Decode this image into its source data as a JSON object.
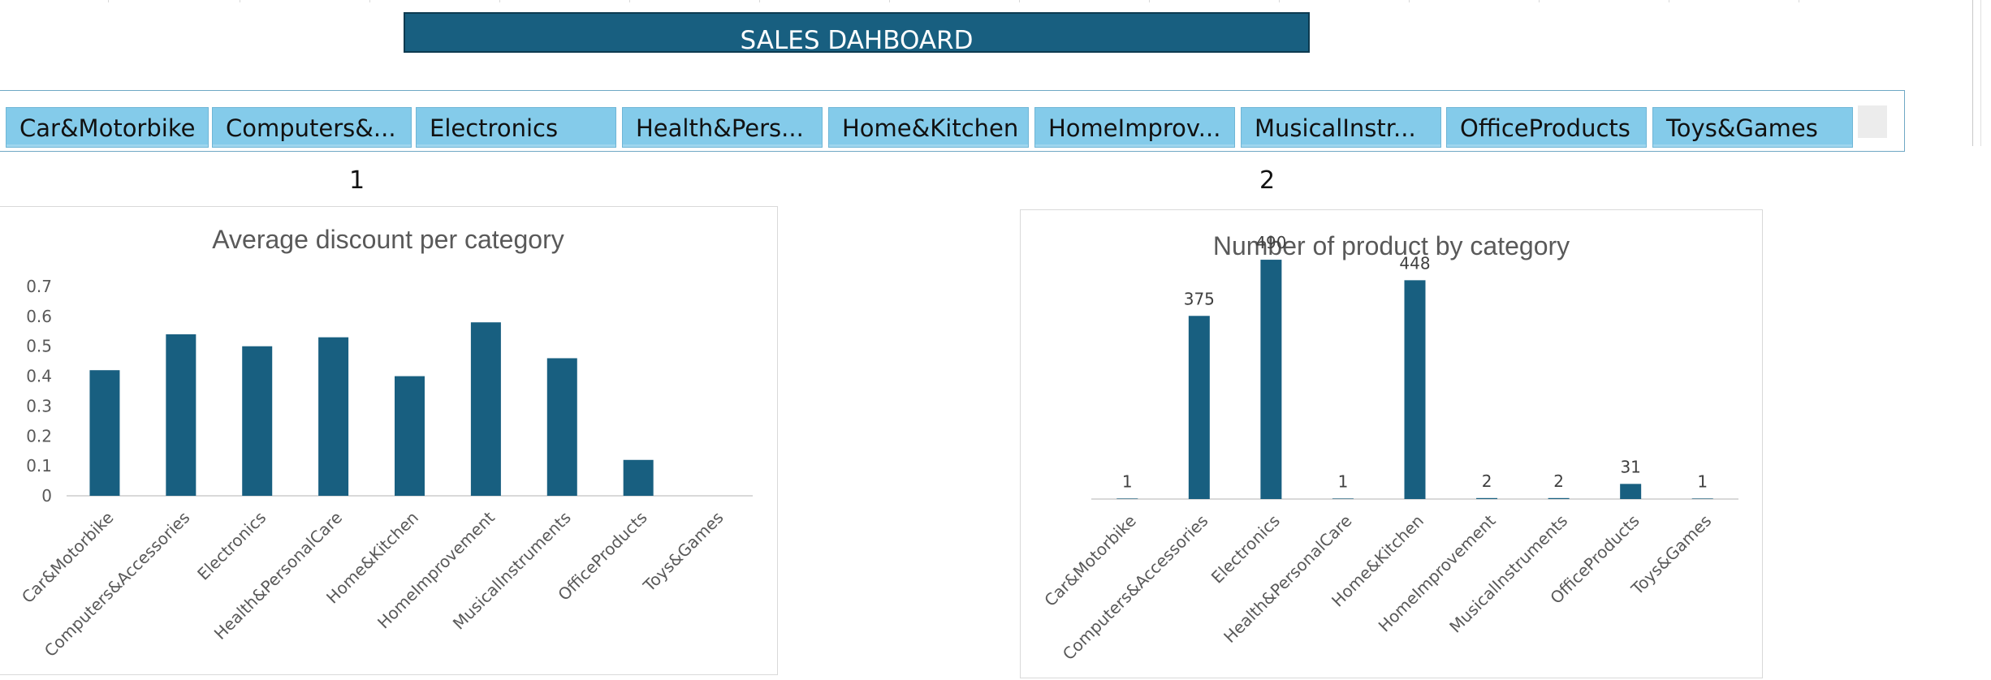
{
  "dashboard_title": "SALES DAHBOARD",
  "slicer": {
    "items": [
      "Car&Motorbike",
      "Computers&...",
      "Electronics",
      "Health&Pers...",
      "Home&Kitchen",
      "HomeImprov...",
      "MusicalInstr...",
      "OfficeProducts",
      "Toys&Games"
    ]
  },
  "chart_numbers": [
    "1",
    "2"
  ],
  "colors": {
    "bar": "#185f80",
    "banner": "#185f80",
    "slicer_button": "#84cbea"
  },
  "chart_data": [
    {
      "type": "bar",
      "title": "Average discount per category",
      "categories": [
        "Car&Motorbike",
        "Computers&Accessories",
        "Electronics",
        "Health&PersonalCare",
        "Home&Kitchen",
        "HomeImprovement",
        "MusicalInstruments",
        "OfficeProducts",
        "Toys&Games"
      ],
      "values": [
        0.42,
        0.54,
        0.5,
        0.53,
        0.4,
        0.58,
        0.46,
        0.12,
        0
      ],
      "ylim": [
        0,
        0.7
      ],
      "yticks": [
        "0",
        "0.1",
        "0.2",
        "0.3",
        "0.4",
        "0.5",
        "0.6",
        "0.7"
      ],
      "data_labels": false
    },
    {
      "type": "bar",
      "title": "Number of product by category",
      "categories": [
        "Car&Motorbike",
        "Computers&Accessories",
        "Electronics",
        "Health&PersonalCare",
        "Home&Kitchen",
        "HomeImprovement",
        "MusicalInstruments",
        "OfficeProducts",
        "Toys&Games"
      ],
      "values": [
        1,
        375,
        490,
        1,
        448,
        2,
        2,
        31,
        1
      ],
      "ylim": [
        0,
        525
      ],
      "data_labels": true
    }
  ]
}
